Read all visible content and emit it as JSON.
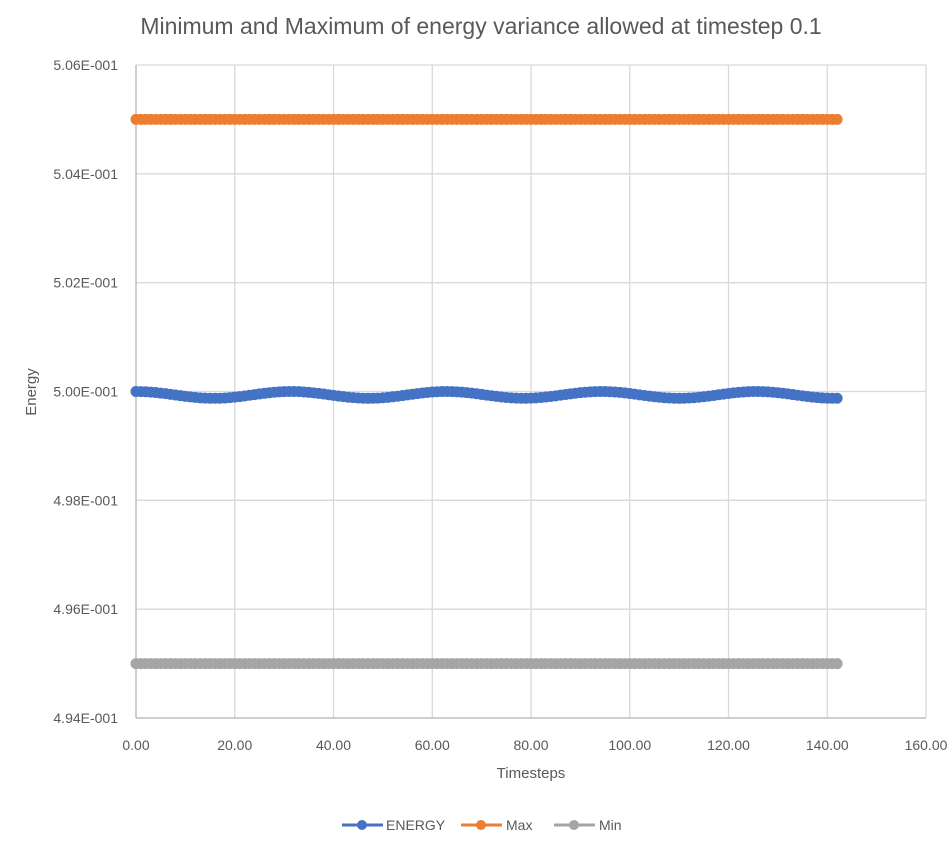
{
  "chart_data": {
    "type": "line",
    "title": "Minimum and Maximum of energy variance allowed at timestep 0.1",
    "xlabel": "Timesteps",
    "ylabel": "Energy",
    "xlim": [
      0,
      160
    ],
    "ylim": [
      0.494,
      0.506
    ],
    "x_ticks": [
      0,
      20,
      40,
      60,
      80,
      100,
      120,
      140,
      160
    ],
    "x_tick_labels": [
      "0.00",
      "20.00",
      "40.00",
      "60.00",
      "80.00",
      "100.00",
      "120.00",
      "140.00",
      "160.00"
    ],
    "y_ticks": [
      0.494,
      0.496,
      0.498,
      0.5,
      0.502,
      0.504,
      0.506
    ],
    "y_tick_labels": [
      "4.94E-001",
      "4.96E-001",
      "4.98E-001",
      "5.00E-001",
      "5.02E-001",
      "5.04E-001",
      "5.06E-001"
    ],
    "grid": true,
    "legend_position": "bottom",
    "x_range_data": [
      0,
      142
    ],
    "x_step": 1,
    "series": [
      {
        "name": "ENERGY",
        "color": "#4472C4",
        "description": "oscillation between 5.00E-001 and ~4.9988E-001, period ~31.4",
        "model": {
          "center": 0.4999375,
          "amplitude": 6.25e-05,
          "period": 31.4159
        },
        "key_points": [
          {
            "x": 0,
            "y": 0.5
          },
          {
            "x": 15.7,
            "y": 0.49988
          },
          {
            "x": 31.4,
            "y": 0.5
          },
          {
            "x": 47.1,
            "y": 0.49988
          },
          {
            "x": 62.8,
            "y": 0.5
          },
          {
            "x": 78.5,
            "y": 0.49988
          },
          {
            "x": 94.2,
            "y": 0.5
          },
          {
            "x": 110.0,
            "y": 0.49988
          },
          {
            "x": 125.7,
            "y": 0.5
          },
          {
            "x": 142,
            "y": 0.49988
          }
        ]
      },
      {
        "name": "Max",
        "color": "#ED7D31",
        "constant": 0.505
      },
      {
        "name": "Min",
        "color": "#A5A5A5",
        "constant": 0.495
      }
    ]
  }
}
